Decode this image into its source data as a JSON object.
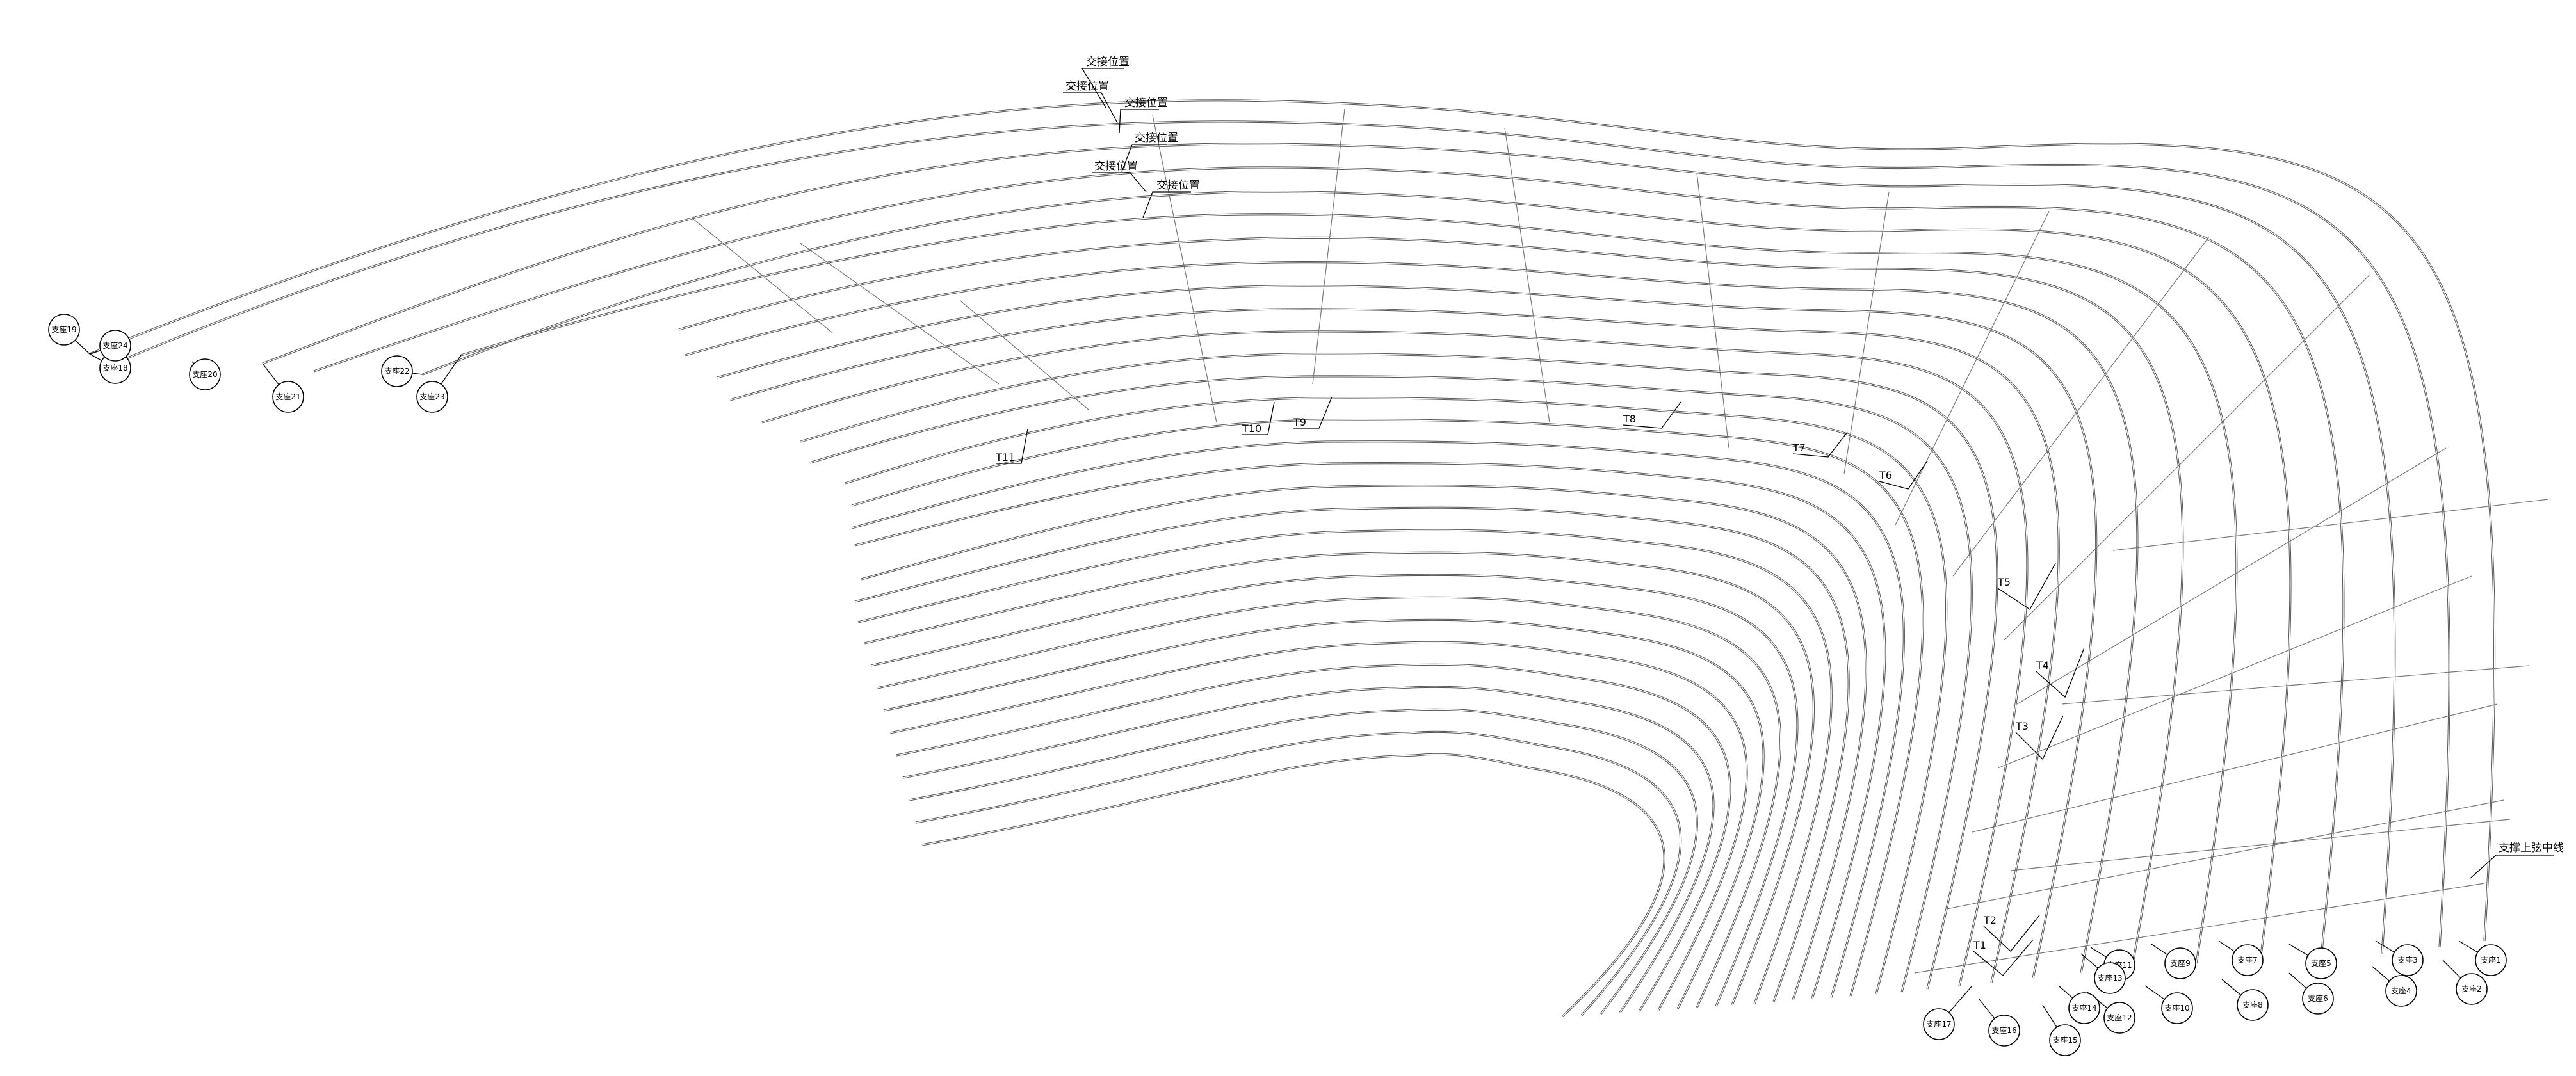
{
  "drawing": {
    "joint_labels": [
      "交接位置",
      "交接位置",
      "交接位置",
      "交接位置",
      "交接位置",
      "交接位置"
    ],
    "truss_labels": [
      "T1",
      "T2",
      "T3",
      "T4",
      "T5",
      "T6",
      "T7",
      "T8",
      "T9",
      "T10",
      "T11"
    ],
    "top_chord_label": "支撑上弦中线",
    "support_labels": [
      "支座1",
      "支座2",
      "支座3",
      "支座4",
      "支座5",
      "支座6",
      "支座7",
      "支座8",
      "支座9",
      "支座10",
      "支座11",
      "支座12",
      "支座13",
      "支座14",
      "支座15",
      "支座16",
      "支座17",
      "支座18",
      "支座19",
      "支座20",
      "支座21",
      "支座22",
      "支座23",
      "支座24"
    ],
    "colors": {
      "line": "#000000",
      "chord": "#555555",
      "background": "#ffffff"
    }
  }
}
